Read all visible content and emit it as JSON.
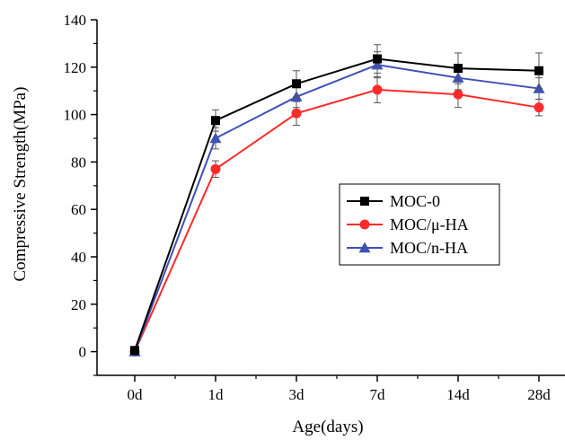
{
  "chart_data": {
    "type": "line",
    "title": "",
    "xlabel": "Age(days)",
    "ylabel": "Compressive Strength(MPa)",
    "categories": [
      "0d",
      "1d",
      "3d",
      "7d",
      "14d",
      "28d"
    ],
    "ylim": [
      -10,
      140
    ],
    "yticks": [
      0,
      20,
      40,
      60,
      80,
      100,
      120,
      140
    ],
    "grid": false,
    "legend_position": "center-right",
    "series": [
      {
        "name": "MOC-0",
        "color": "#000000",
        "marker": "square",
        "values": [
          0.5,
          97.5,
          113,
          123.5,
          119.5,
          118.5
        ],
        "errors": [
          0.5,
          4.5,
          5.5,
          6,
          6.5,
          7.5
        ]
      },
      {
        "name": "MOC/μ-HA",
        "color": "#ff2a2a",
        "marker": "circle",
        "values": [
          0,
          77,
          100.5,
          110.5,
          108.5,
          103
        ],
        "errors": [
          0.5,
          3.5,
          5,
          5.5,
          5.5,
          3.5
        ]
      },
      {
        "name": "MOC/n-HA",
        "color": "#3f51b5",
        "marker": "triangle",
        "values": [
          0,
          90,
          107.5,
          121,
          115.5,
          111
        ],
        "errors": [
          0.5,
          4.5,
          4.5,
          5.5,
          5,
          4.5
        ]
      }
    ]
  }
}
